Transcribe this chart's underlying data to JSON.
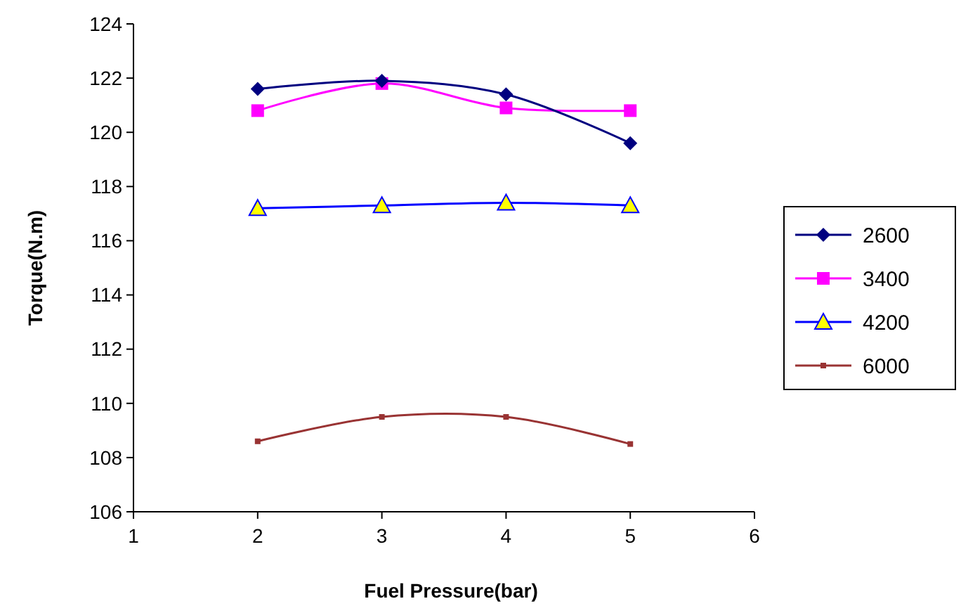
{
  "chart_data": {
    "type": "line",
    "xlabel": "Fuel Pressure(bar)",
    "ylabel": "Torque(N.m)",
    "x": [
      2,
      3,
      4,
      5
    ],
    "xlim": [
      1,
      6
    ],
    "xticks": [
      1,
      2,
      3,
      4,
      5,
      6
    ],
    "ylim": [
      106,
      124
    ],
    "yticks": [
      106,
      108,
      110,
      112,
      114,
      116,
      118,
      120,
      122,
      124
    ],
    "grid": false,
    "legend": "right",
    "series": [
      {
        "name": "2600",
        "color": "#000080",
        "marker": "diamond",
        "values": [
          121.6,
          121.9,
          121.4,
          119.6
        ]
      },
      {
        "name": "3400",
        "color": "#ff00ff",
        "marker": "square",
        "values": [
          120.8,
          121.8,
          120.9,
          120.8
        ]
      },
      {
        "name": "4200",
        "color": "#0000ff",
        "marker": "triangle",
        "values": [
          117.2,
          117.3,
          117.4,
          117.3
        ]
      },
      {
        "name": "6000",
        "color": "#993333",
        "marker": "square",
        "values": [
          108.6,
          109.5,
          109.5,
          108.5
        ]
      }
    ]
  }
}
